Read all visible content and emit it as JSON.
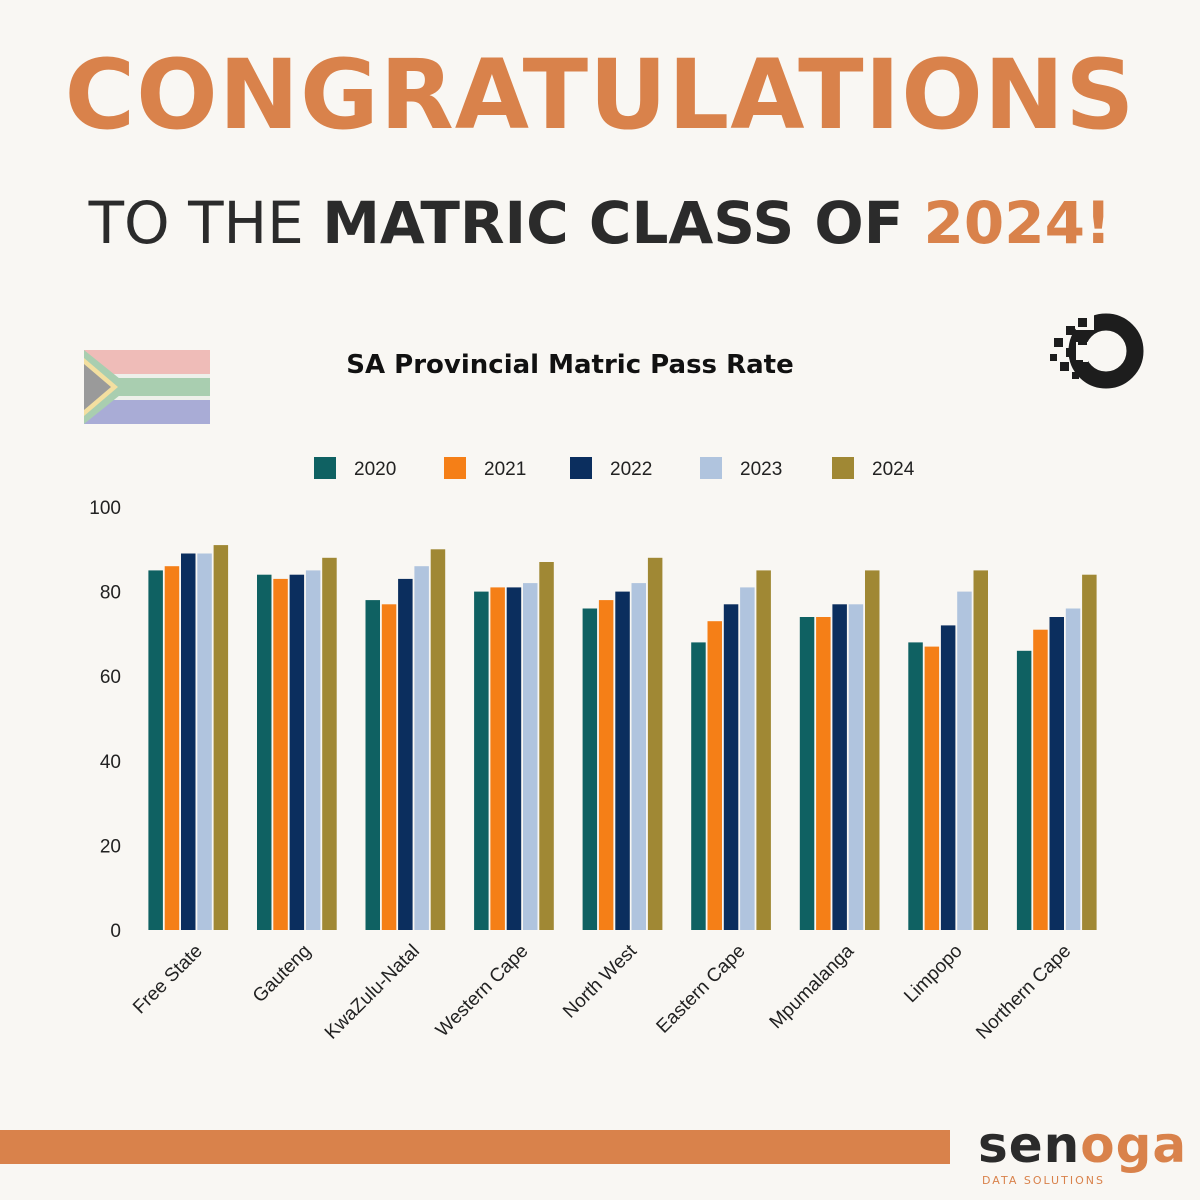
{
  "headline": "CONGRATULATIONS",
  "subheadline": {
    "part1": "TO THE ",
    "part2": "MATRIC CLASS OF ",
    "part3": "2024!"
  },
  "icons": [
    "south-africa-flag-icon",
    "pixel-ring-logo-icon"
  ],
  "colors": {
    "accent": "#d9824b",
    "dark_text": "#2b2b2b",
    "background": "#f9f7f3"
  },
  "brand": {
    "name_part1": "sen",
    "name_part2": "oga",
    "tagline": "DATA SOLUTIONS"
  },
  "chart_data": {
    "type": "bar",
    "title": "SA Provincial Matric Pass Rate",
    "categories": [
      "Free State",
      "Gauteng",
      "KwaZulu-Natal",
      "Western Cape",
      "North West",
      "Eastern Cape",
      "Mpumalanga",
      "Limpopo",
      "Northern Cape"
    ],
    "series": [
      {
        "name": "2020",
        "color": "#0f6162",
        "values": [
          85,
          84,
          78,
          80,
          76,
          68,
          74,
          68,
          66
        ]
      },
      {
        "name": "2021",
        "color": "#f57f17",
        "values": [
          86,
          83,
          77,
          81,
          78,
          73,
          74,
          67,
          71
        ]
      },
      {
        "name": "2022",
        "color": "#0b2e5e",
        "values": [
          89,
          84,
          83,
          81,
          80,
          77,
          77,
          72,
          74
        ]
      },
      {
        "name": "2023",
        "color": "#b0c4de",
        "values": [
          89,
          85,
          86,
          82,
          82,
          81,
          77,
          80,
          76
        ]
      },
      {
        "name": "2024",
        "color": "#a08834",
        "values": [
          91,
          88,
          90,
          87,
          88,
          85,
          85,
          85,
          84
        ]
      }
    ],
    "ylim": [
      0,
      100
    ],
    "yticks": [
      "0",
      "20",
      "40",
      "60",
      "80",
      "100"
    ],
    "grid": false,
    "legend_position": "top"
  }
}
